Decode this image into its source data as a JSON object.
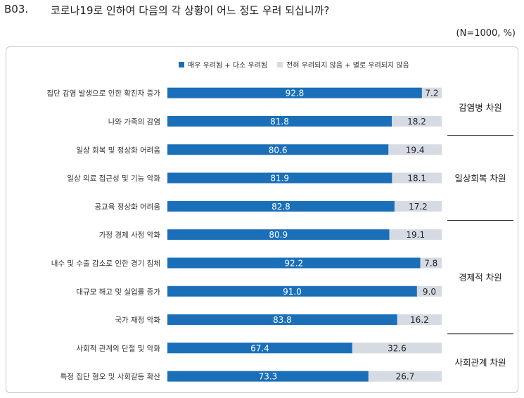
{
  "header": {
    "qnum": "B03.",
    "question": "코로나19로 인하여 다음의 각 상황이 어느 정도 우려 되십니까?",
    "note": "(N=1000, %)"
  },
  "colors": {
    "concern": "#1a6fb8",
    "no_concern": "#d6dbe3",
    "divider": "#333333"
  },
  "chart_data": {
    "type": "bar",
    "orientation": "horizontal",
    "stacked": true,
    "legend_position": "top",
    "xlim": [
      0,
      100
    ],
    "categories": [
      "집단 감염 발생으로 인한 확진자 증가",
      "나와 가족의 감염",
      "일상 회복 및 정상화 어려움",
      "일상 의료 접근성 및 기능 악화",
      "공교육 정상화 어려움",
      "가정 경제 사정 악화",
      "내수 및 수출 감소로 인한 경기 침체",
      "대규모 해고 및 실업률 증가",
      "국가 재정 악화",
      "사회적 관계의 단절 및 악화",
      "특정 집단 혐오 및 사회갈등 확산"
    ],
    "series": [
      {
        "name": "매우 우려됨 + 다소 우려됨",
        "values": [
          92.8,
          81.8,
          80.6,
          81.9,
          82.8,
          80.9,
          92.2,
          91.0,
          83.8,
          67.4,
          73.3
        ]
      },
      {
        "name": "전혀 우려되지 않음 + 별로 우려되지 않음",
        "values": [
          7.2,
          18.2,
          19.4,
          18.1,
          17.2,
          19.1,
          7.8,
          9.0,
          16.2,
          32.6,
          26.7
        ]
      }
    ],
    "value_labels": [
      [
        "92.8",
        "81.8",
        "80.6",
        "81.9",
        "82.8",
        "80.9",
        "92.2",
        "91.0",
        "83.8",
        "67.4",
        "73.3"
      ],
      [
        "7.2",
        "18.2",
        "19.4",
        "18.1",
        "17.2",
        "19.1",
        "7.8",
        "9.0",
        "16.2",
        "32.6",
        "26.7"
      ]
    ],
    "groups": [
      {
        "label": "감염병 차원",
        "start": 0,
        "end": 1
      },
      {
        "label": "일상회복 차원",
        "start": 2,
        "end": 4
      },
      {
        "label": "경제적 차원",
        "start": 5,
        "end": 8
      },
      {
        "label": "사회관계 차원",
        "start": 9,
        "end": 10
      }
    ]
  }
}
